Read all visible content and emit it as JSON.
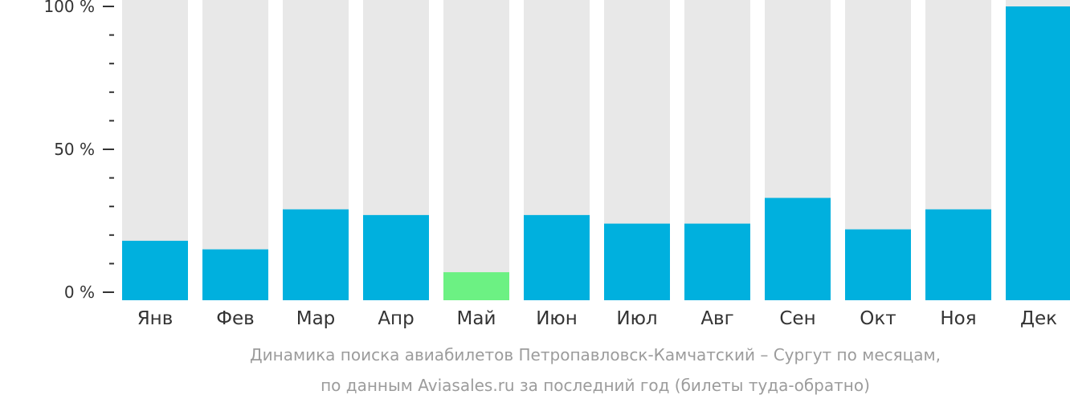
{
  "chart_data": {
    "type": "bar",
    "categories": [
      "Янв",
      "Фев",
      "Мар",
      "Апр",
      "Май",
      "Июн",
      "Июл",
      "Авг",
      "Сен",
      "Окт",
      "Ноя",
      "Дек"
    ],
    "values": [
      18,
      15,
      29,
      27,
      7,
      27,
      24,
      24,
      33,
      22,
      29,
      100
    ],
    "max_value": 100,
    "highlight_category": "Май",
    "ylim": [
      0,
      100
    ],
    "yticks": [
      {
        "value": 100,
        "label": "100 %"
      },
      {
        "value": 50,
        "label": "50 %"
      },
      {
        "value": 0,
        "label": "0 %"
      }
    ],
    "minor_tick_step": 10,
    "title": "Динамика поиска авиабилетов Петропавловск-Камчатский – Сургут по месяцам,",
    "subtitle": "по данным Aviasales.ru за последний год (билеты туда-обратно)",
    "colors": {
      "bar": "#00b0de",
      "highlight": "#6cf183",
      "background_bar": "#e8e8e8",
      "axis": "#333333",
      "label": "#333333",
      "caption": "#9c9c9c"
    }
  }
}
